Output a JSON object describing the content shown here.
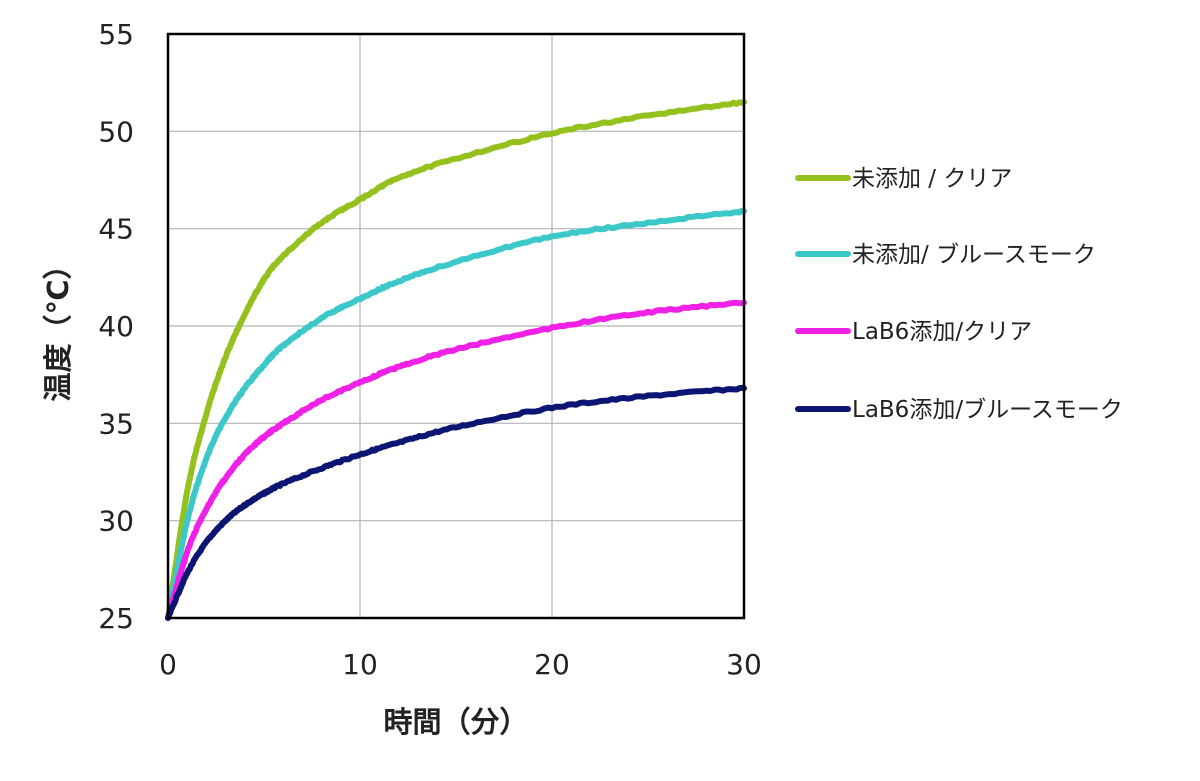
{
  "chart_data": {
    "type": "line",
    "title": "",
    "xlabel": "時間（分）",
    "ylabel": "温度（℃）",
    "xlim": [
      0,
      30
    ],
    "ylim": [
      25,
      55
    ],
    "x_ticks": [
      "0",
      "10",
      "20",
      "30"
    ],
    "y_ticks": [
      "25",
      "30",
      "35",
      "40",
      "45",
      "50",
      "55"
    ],
    "grid": true,
    "legend_position": "right",
    "x": [
      0,
      1,
      2,
      3,
      4,
      5,
      6,
      8,
      10,
      12,
      15,
      20,
      25,
      30
    ],
    "series": [
      {
        "name": "未添加 / クリア",
        "color": "#95c11f",
        "values": [
          25.0,
          31.5,
          35.5,
          38.4,
          40.6,
          42.4,
          43.6,
          45.3,
          46.5,
          47.6,
          48.6,
          49.9,
          50.8,
          51.5
        ]
      },
      {
        "name": "未添加/ ブルースモーク",
        "color": "#3cc8c8",
        "values": [
          25.0,
          30.0,
          33.2,
          35.3,
          36.8,
          38.0,
          39.0,
          40.4,
          41.4,
          42.3,
          43.3,
          44.6,
          45.3,
          45.9
        ]
      },
      {
        "name": "LaB6添加/クリア",
        "color": "#f021e6",
        "values": [
          25.0,
          28.4,
          30.6,
          32.2,
          33.4,
          34.3,
          35.0,
          36.2,
          37.1,
          37.9,
          38.8,
          39.9,
          40.7,
          41.2
        ]
      },
      {
        "name": "LaB6添加/ブルースモーク",
        "color": "#0d1573",
        "values": [
          25.0,
          27.3,
          28.9,
          30.0,
          30.8,
          31.4,
          31.9,
          32.7,
          33.4,
          34.0,
          34.8,
          35.8,
          36.4,
          36.8
        ]
      }
    ]
  }
}
